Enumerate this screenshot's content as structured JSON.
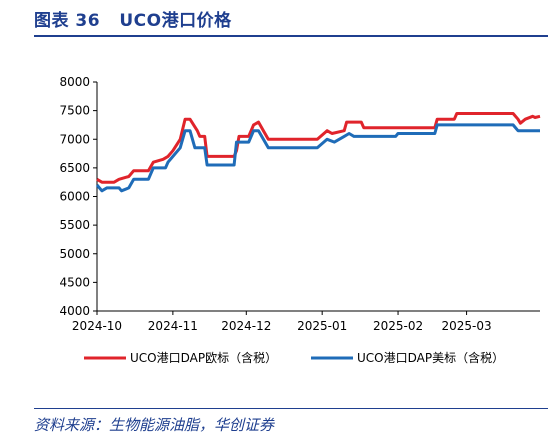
{
  "figure": {
    "label": "图表 36",
    "title": "UCO港口价格",
    "source": "资料来源：生物能源油脂，华创证券"
  },
  "chart_data": {
    "type": "line",
    "title": "UCO港口价格",
    "xlabel": "",
    "ylabel": "",
    "ylim": [
      4000,
      8000
    ],
    "yticks": [
      4000,
      4500,
      5000,
      5500,
      6000,
      6500,
      7000,
      7500,
      8000
    ],
    "xlim": [
      "2024-10-01",
      "2025-03-31"
    ],
    "xticks": [
      "2024-10",
      "2024-11",
      "2024-12",
      "2025-01",
      "2025-02",
      "2025-03"
    ],
    "grid": false,
    "legend_position": "bottom",
    "series": [
      {
        "name": "UCO港口DAP欧标（含税）",
        "color": "#e0242b",
        "points": [
          [
            "2024-10-01",
            6300
          ],
          [
            "2024-10-03",
            6250
          ],
          [
            "2024-10-08",
            6250
          ],
          [
            "2024-10-10",
            6300
          ],
          [
            "2024-10-14",
            6350
          ],
          [
            "2024-10-16",
            6450
          ],
          [
            "2024-10-22",
            6450
          ],
          [
            "2024-10-24",
            6600
          ],
          [
            "2024-10-28",
            6650
          ],
          [
            "2024-10-30",
            6700
          ],
          [
            "2024-11-01",
            6800
          ],
          [
            "2024-11-04",
            7000
          ],
          [
            "2024-11-06",
            7350
          ],
          [
            "2024-11-08",
            7350
          ],
          [
            "2024-11-11",
            7150
          ],
          [
            "2024-11-12",
            7050
          ],
          [
            "2024-11-14",
            7050
          ],
          [
            "2024-11-15",
            6700
          ],
          [
            "2024-11-26",
            6700
          ],
          [
            "2024-11-27",
            6800
          ],
          [
            "2024-11-28",
            7050
          ],
          [
            "2024-12-02",
            7050
          ],
          [
            "2024-12-04",
            7250
          ],
          [
            "2024-12-06",
            7300
          ],
          [
            "2024-12-08",
            7150
          ],
          [
            "2024-12-10",
            7000
          ],
          [
            "2024-12-30",
            7000
          ],
          [
            "2025-01-03",
            7150
          ],
          [
            "2025-01-05",
            7100
          ],
          [
            "2025-01-10",
            7150
          ],
          [
            "2025-01-11",
            7300
          ],
          [
            "2025-01-17",
            7300
          ],
          [
            "2025-01-18",
            7200
          ],
          [
            "2025-02-16",
            7200
          ],
          [
            "2025-02-17",
            7350
          ],
          [
            "2025-02-24",
            7350
          ],
          [
            "2025-02-25",
            7450
          ],
          [
            "2025-03-20",
            7450
          ],
          [
            "2025-03-22",
            7350
          ],
          [
            "2025-03-23",
            7280
          ],
          [
            "2025-03-25",
            7350
          ],
          [
            "2025-03-28",
            7400
          ],
          [
            "2025-03-29",
            7380
          ],
          [
            "2025-03-31",
            7400
          ]
        ]
      },
      {
        "name": "UCO港口DAP美标（含税）",
        "color": "#1f6cb8",
        "points": [
          [
            "2024-10-01",
            6200
          ],
          [
            "2024-10-03",
            6100
          ],
          [
            "2024-10-05",
            6150
          ],
          [
            "2024-10-10",
            6150
          ],
          [
            "2024-10-11",
            6100
          ],
          [
            "2024-10-14",
            6150
          ],
          [
            "2024-10-16",
            6300
          ],
          [
            "2024-10-22",
            6300
          ],
          [
            "2024-10-24",
            6500
          ],
          [
            "2024-10-29",
            6500
          ],
          [
            "2024-10-30",
            6600
          ],
          [
            "2024-11-01",
            6700
          ],
          [
            "2024-11-04",
            6850
          ],
          [
            "2024-11-06",
            7150
          ],
          [
            "2024-11-08",
            7150
          ],
          [
            "2024-11-10",
            6850
          ],
          [
            "2024-11-14",
            6850
          ],
          [
            "2024-11-15",
            6550
          ],
          [
            "2024-11-26",
            6550
          ],
          [
            "2024-11-27",
            6950
          ],
          [
            "2024-12-02",
            6950
          ],
          [
            "2024-12-04",
            7150
          ],
          [
            "2024-12-06",
            7150
          ],
          [
            "2024-12-10",
            6850
          ],
          [
            "2024-12-30",
            6850
          ],
          [
            "2025-01-03",
            7000
          ],
          [
            "2025-01-06",
            6950
          ],
          [
            "2025-01-10",
            7050
          ],
          [
            "2025-01-12",
            7100
          ],
          [
            "2025-01-14",
            7050
          ],
          [
            "2025-01-31",
            7050
          ],
          [
            "2025-02-01",
            7100
          ],
          [
            "2025-02-16",
            7100
          ],
          [
            "2025-02-17",
            7250
          ],
          [
            "2025-03-20",
            7250
          ],
          [
            "2025-03-22",
            7150
          ],
          [
            "2025-03-31",
            7150
          ]
        ]
      }
    ]
  }
}
